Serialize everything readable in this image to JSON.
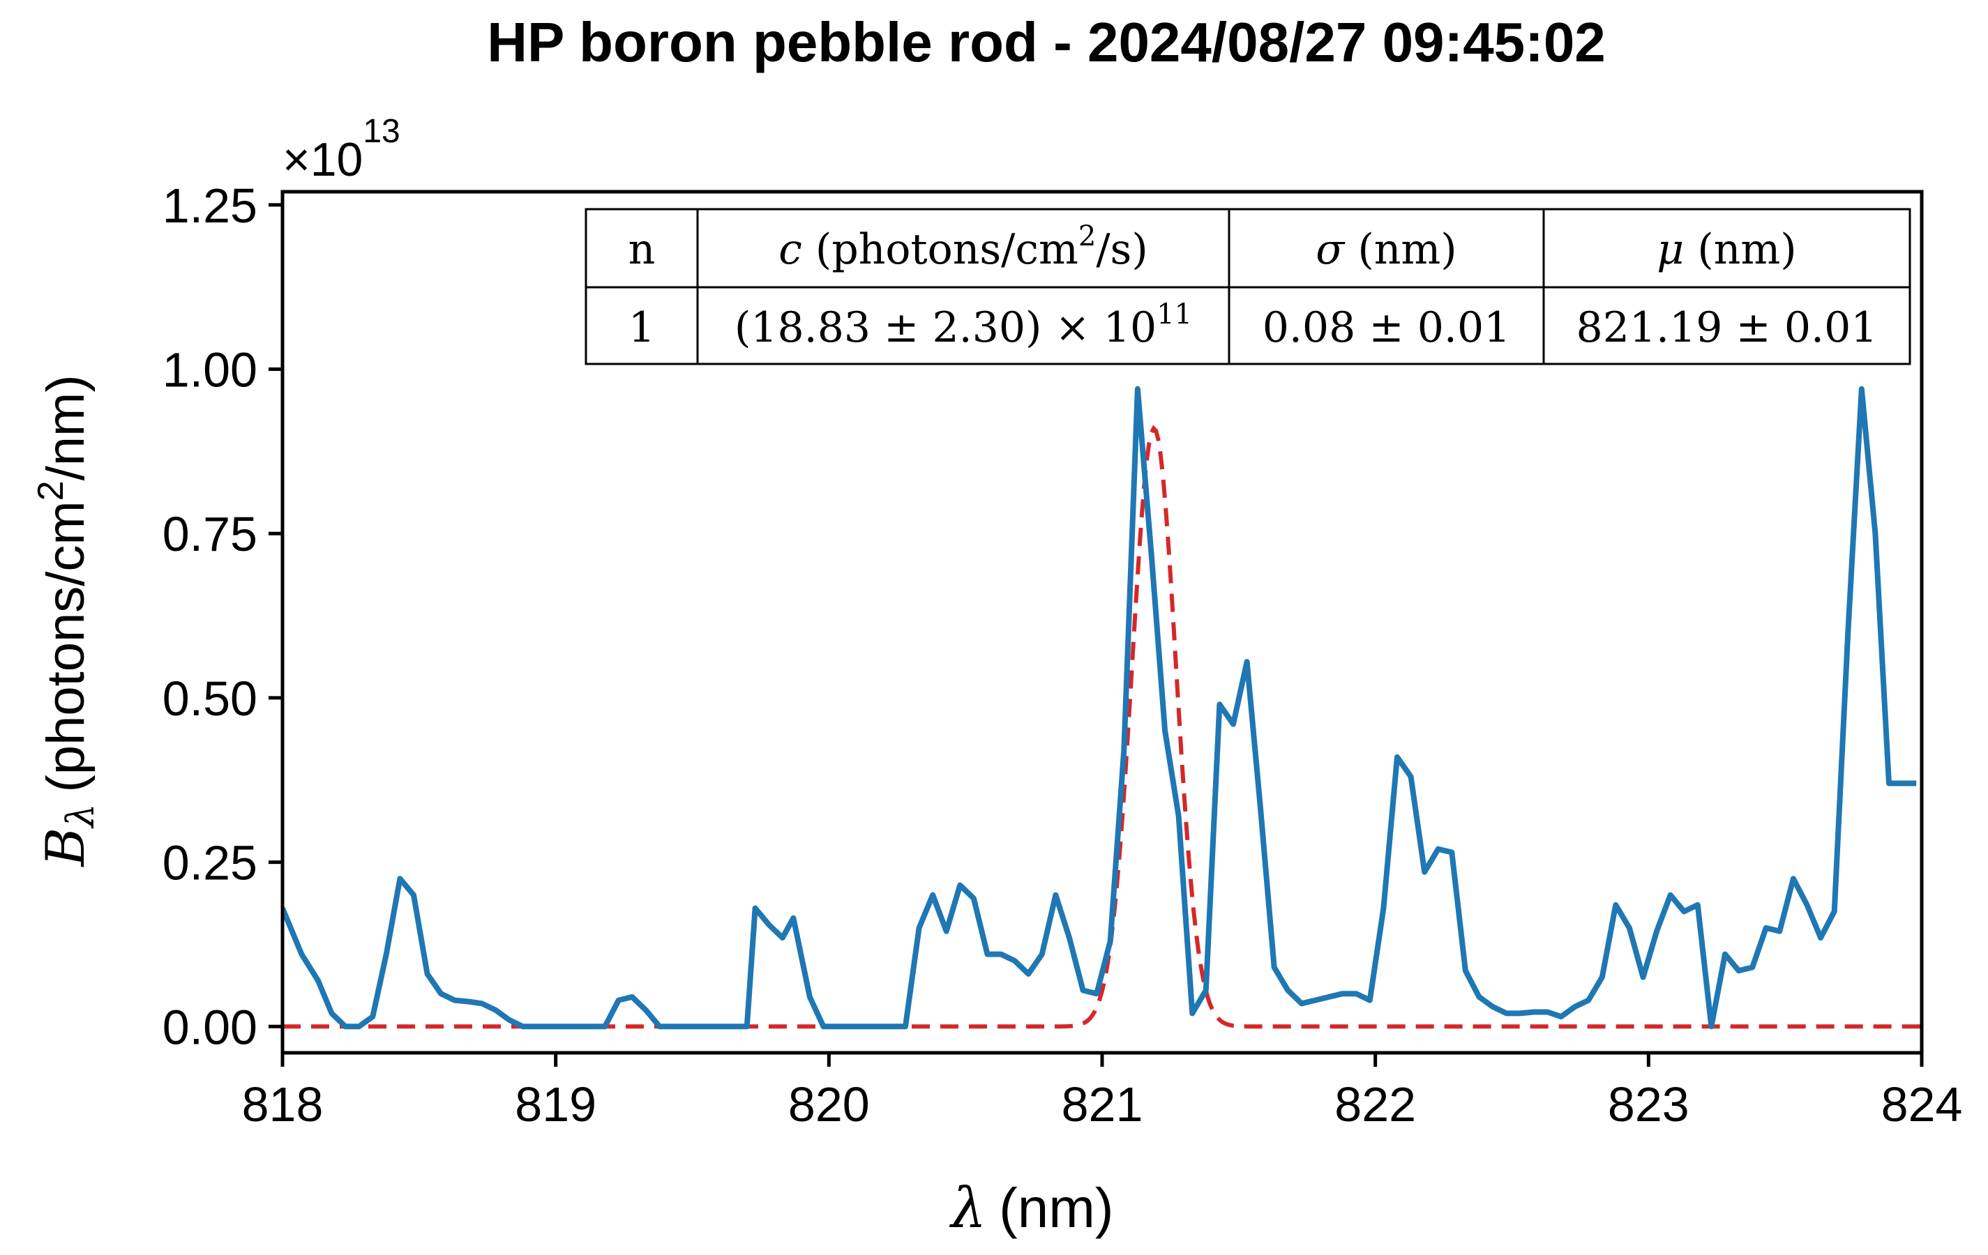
{
  "chart_data": {
    "type": "line",
    "title": "HP boron pebble rod - 2024/08/27 09:45:02",
    "xlabel_symbol": "λ",
    "xlabel_unit": "(nm)",
    "ylabel_symbol": "B",
    "ylabel_subscript": "λ",
    "ylabel_unit_pre": "(photons/cm",
    "ylabel_unit_sup": "2",
    "ylabel_unit_post": "/nm)",
    "y_offset_base": "×10",
    "y_offset_exp": "13",
    "y_multiplier": 10000000000000.0,
    "xlim": [
      818,
      824
    ],
    "ylim": [
      -0.04,
      1.27
    ],
    "xticks": [
      818,
      819,
      820,
      821,
      822,
      823,
      824
    ],
    "yticks": [
      0.0,
      0.25,
      0.5,
      0.75,
      1.0,
      1.25
    ],
    "xtick_labels": [
      "818",
      "819",
      "820",
      "821",
      "822",
      "823",
      "824"
    ],
    "ytick_labels": [
      "0.00",
      "0.25",
      "0.50",
      "0.75",
      "1.00",
      "1.25"
    ],
    "grid": false,
    "series": [
      {
        "style": "solid",
        "color": "#1f77b4",
        "x": [
          818.0,
          818.07,
          818.13,
          818.18,
          818.23,
          818.28,
          818.33,
          818.38,
          818.43,
          818.48,
          818.53,
          818.58,
          818.63,
          818.68,
          818.73,
          818.78,
          818.83,
          818.88,
          818.93,
          819.0,
          819.1,
          819.18,
          819.23,
          819.28,
          819.33,
          819.38,
          819.45,
          819.55,
          819.65,
          819.7,
          819.73,
          819.78,
          819.83,
          819.87,
          819.93,
          819.98,
          820.05,
          820.15,
          820.2,
          820.28,
          820.33,
          820.38,
          820.43,
          820.48,
          820.53,
          820.58,
          820.63,
          820.68,
          820.73,
          820.78,
          820.83,
          820.88,
          820.93,
          820.98,
          821.03,
          821.08,
          821.13,
          821.18,
          821.23,
          821.28,
          821.33,
          821.38,
          821.43,
          821.48,
          821.53,
          821.58,
          821.63,
          821.68,
          821.73,
          821.78,
          821.83,
          821.88,
          821.93,
          821.98,
          822.03,
          822.08,
          822.13,
          822.18,
          822.23,
          822.28,
          822.33,
          822.38,
          822.43,
          822.48,
          822.53,
          822.58,
          822.63,
          822.68,
          822.73,
          822.78,
          822.83,
          822.88,
          822.93,
          822.98,
          823.03,
          823.08,
          823.13,
          823.18,
          823.23,
          823.28,
          823.33,
          823.38,
          823.43,
          823.48,
          823.53,
          823.58,
          823.63,
          823.68,
          823.73,
          823.78,
          823.83,
          823.88,
          823.93,
          823.98
        ],
        "y": [
          0.18,
          0.11,
          0.07,
          0.02,
          0.0,
          0.0,
          0.015,
          0.11,
          0.225,
          0.2,
          0.08,
          0.05,
          0.04,
          0.038,
          0.035,
          0.025,
          0.01,
          0.0,
          0.0,
          0.0,
          0.0,
          0.0,
          0.04,
          0.045,
          0.025,
          0.0,
          0.0,
          0.0,
          0.0,
          0.0,
          0.18,
          0.155,
          0.135,
          0.165,
          0.045,
          0.0,
          0.0,
          0.0,
          0.0,
          0.0,
          0.15,
          0.2,
          0.145,
          0.215,
          0.195,
          0.11,
          0.11,
          0.1,
          0.08,
          0.11,
          0.2,
          0.135,
          0.055,
          0.05,
          0.13,
          0.42,
          0.97,
          0.72,
          0.45,
          0.32,
          0.02,
          0.055,
          0.49,
          0.46,
          0.555,
          0.33,
          0.09,
          0.055,
          0.035,
          0.04,
          0.045,
          0.05,
          0.05,
          0.04,
          0.18,
          0.41,
          0.38,
          0.235,
          0.27,
          0.265,
          0.085,
          0.045,
          0.03,
          0.02,
          0.02,
          0.022,
          0.022,
          0.015,
          0.03,
          0.04,
          0.075,
          0.185,
          0.15,
          0.075,
          0.145,
          0.2,
          0.175,
          0.185,
          0.0,
          0.11,
          0.085,
          0.09,
          0.15,
          0.145,
          0.225,
          0.185,
          0.135,
          0.175,
          0.6,
          0.97,
          0.75,
          0.37,
          0.37,
          0.37
        ]
      },
      {
        "style": "gaussian-fit",
        "color": "#d62728",
        "amplitude_c": 1883000000000.0,
        "sigma": 0.08,
        "mu": 821.19,
        "peak_y": 0.91
      }
    ],
    "fit_table": {
      "headers": [
        {
          "pre": "n"
        },
        {
          "sym": "c",
          "pre": " (photons/cm",
          "sup": "2",
          "post": "/s)"
        },
        {
          "sym": "σ",
          "pre": " (nm)"
        },
        {
          "sym": "μ",
          "pre": " (nm)"
        }
      ],
      "rows": [
        [
          {
            "pre": "1"
          },
          {
            "pre": "(18.83 ± 2.30) × 10",
            "sup": "11"
          },
          {
            "pre": "0.08 ± 0.01"
          },
          {
            "pre": "821.19 ± 0.01"
          }
        ]
      ]
    }
  }
}
